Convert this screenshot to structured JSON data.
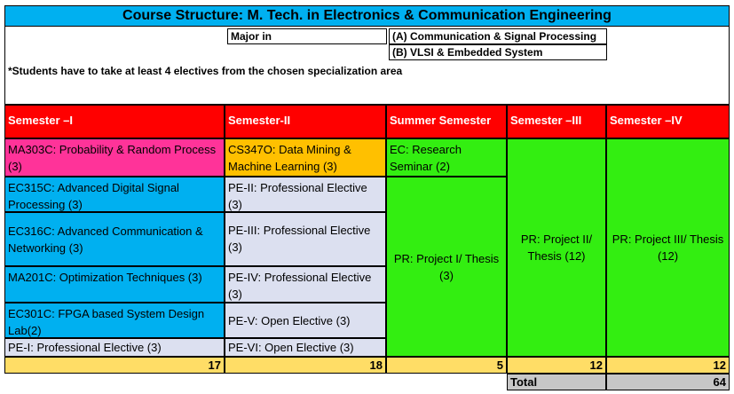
{
  "title": "Course Structure: M. Tech. in Electronics & Communication Engineering",
  "major_label": "Major in",
  "majors": [
    "(A) Communication & Signal Processing",
    "(B) VLSI & Embedded System"
  ],
  "note": "*Students have to take at least 4 electives from the chosen specialization area",
  "headers": [
    "Semester –I",
    "Semester-II",
    "Summer Semester",
    "Semester –III",
    "Semester –IV"
  ],
  "sem1": [
    "MA303C: Probability & Random Process (3)",
    "EC315C: Advanced Digital Signal Processing  (3)",
    "EC316C: Advanced Communication & Networking  (3)",
    "MA201C: Optimization Techniques (3)",
    "EC301C: FPGA based System Design Lab(2)",
    "PE-I: Professional Elective (3)"
  ],
  "sem2": [
    "CS347O: Data Mining & Machine Learning  (3)",
    "PE-II: Professional Elective (3)",
    "PE-III: Professional Elective (3)",
    "PE-IV: Professional Elective (3)",
    "PE-V: Open Elective (3)",
    "PE-VI: Open Elective (3)"
  ],
  "summer": [
    "EC: Research Seminar (2)",
    "PR: Project I/ Thesis (3)"
  ],
  "sem3": "PR: Project II/ Thesis (12)",
  "sem4": "PR: Project III/ Thesis (12)",
  "credits": [
    "17",
    "18",
    "5",
    "12",
    "12"
  ],
  "total_label": "Total",
  "total_value": "64",
  "colors": {
    "title_bg": "#00b0f0",
    "header_bg": "#ff0000",
    "core_math": "#ff3399",
    "core_ec": "#00b0f0",
    "elective": "#dce0f0",
    "open_core": "#ffc000",
    "project": "#33ee11",
    "credits_bg": "#ffdd66",
    "total_bg": "#c7c7c7"
  }
}
